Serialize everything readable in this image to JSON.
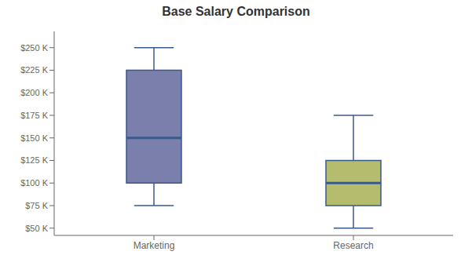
{
  "chart_data": {
    "type": "box",
    "title": "Base Salary Comparison",
    "categories": [
      "Marketing",
      "Research"
    ],
    "whisker_low": [
      75000,
      50000
    ],
    "q1": [
      100000,
      75000
    ],
    "median": [
      150000,
      100000
    ],
    "q3": [
      225000,
      125000
    ],
    "whisker_high": [
      250000,
      175000
    ],
    "colors": [
      "#7b7fac",
      "#b5bc6e"
    ],
    "color": "#3a5a8a",
    "ylim": [
      42000,
      268000
    ],
    "yticks": [
      {
        "value": 50000,
        "label": "$50 K"
      },
      {
        "value": 75000,
        "label": "$75 K"
      },
      {
        "value": 100000,
        "label": "$100 K"
      },
      {
        "value": 125000,
        "label": "$125 K"
      },
      {
        "value": 150000,
        "label": "$150 K"
      },
      {
        "value": 175000,
        "label": "$175 K"
      },
      {
        "value": 200000,
        "label": "$200 K"
      },
      {
        "value": 225000,
        "label": "$225 K"
      },
      {
        "value": 250000,
        "label": "$250 K"
      }
    ],
    "grid": false
  }
}
